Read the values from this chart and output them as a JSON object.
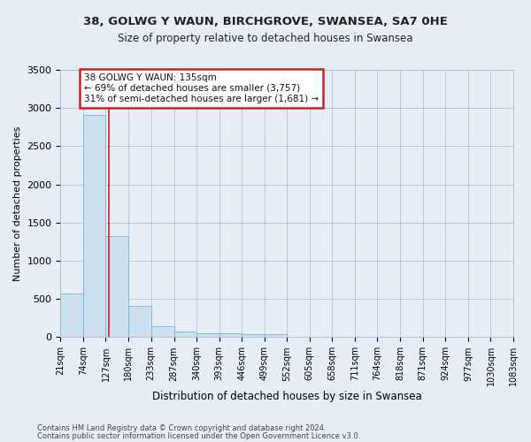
{
  "title1": "38, GOLWG Y WAUN, BIRCHGROVE, SWANSEA, SA7 0HE",
  "title2": "Size of property relative to detached houses in Swansea",
  "xlabel": "Distribution of detached houses by size in Swansea",
  "ylabel": "Number of detached properties",
  "footer1": "Contains HM Land Registry data © Crown copyright and database right 2024.",
  "footer2": "Contains public sector information licensed under the Open Government Licence v3.0.",
  "bin_edges": [
    21,
    74,
    127,
    180,
    233,
    287,
    340,
    393,
    446,
    499,
    552,
    605,
    658,
    711,
    764,
    818,
    871,
    924,
    977,
    1030,
    1083
  ],
  "bar_heights": [
    570,
    2910,
    1320,
    410,
    150,
    80,
    55,
    50,
    45,
    40,
    0,
    0,
    0,
    0,
    0,
    0,
    0,
    0,
    0,
    0
  ],
  "bar_color": "#cce0f0",
  "bar_edge_color": "#7ab3d4",
  "vline_x": 135,
  "vline_color": "#cc2222",
  "annotation_text": "38 GOLWG Y WAUN: 135sqm\n← 69% of detached houses are smaller (3,757)\n31% of semi-detached houses are larger (1,681) →",
  "annotation_box_facecolor": "white",
  "annotation_box_edgecolor": "#cc2222",
  "ylim": [
    0,
    3500
  ],
  "yticks": [
    0,
    500,
    1000,
    1500,
    2000,
    2500,
    3000,
    3500
  ],
  "grid_color": "#b0c4de",
  "bg_color": "#e8eef5",
  "plot_bg_color": "#e8eef5",
  "title1_fontsize": 9.5,
  "title2_fontsize": 8.5,
  "ylabel_fontsize": 8,
  "xlabel_fontsize": 8.5,
  "tick_fontsize": 7,
  "ann_fontsize": 7.5,
  "footer_fontsize": 6
}
